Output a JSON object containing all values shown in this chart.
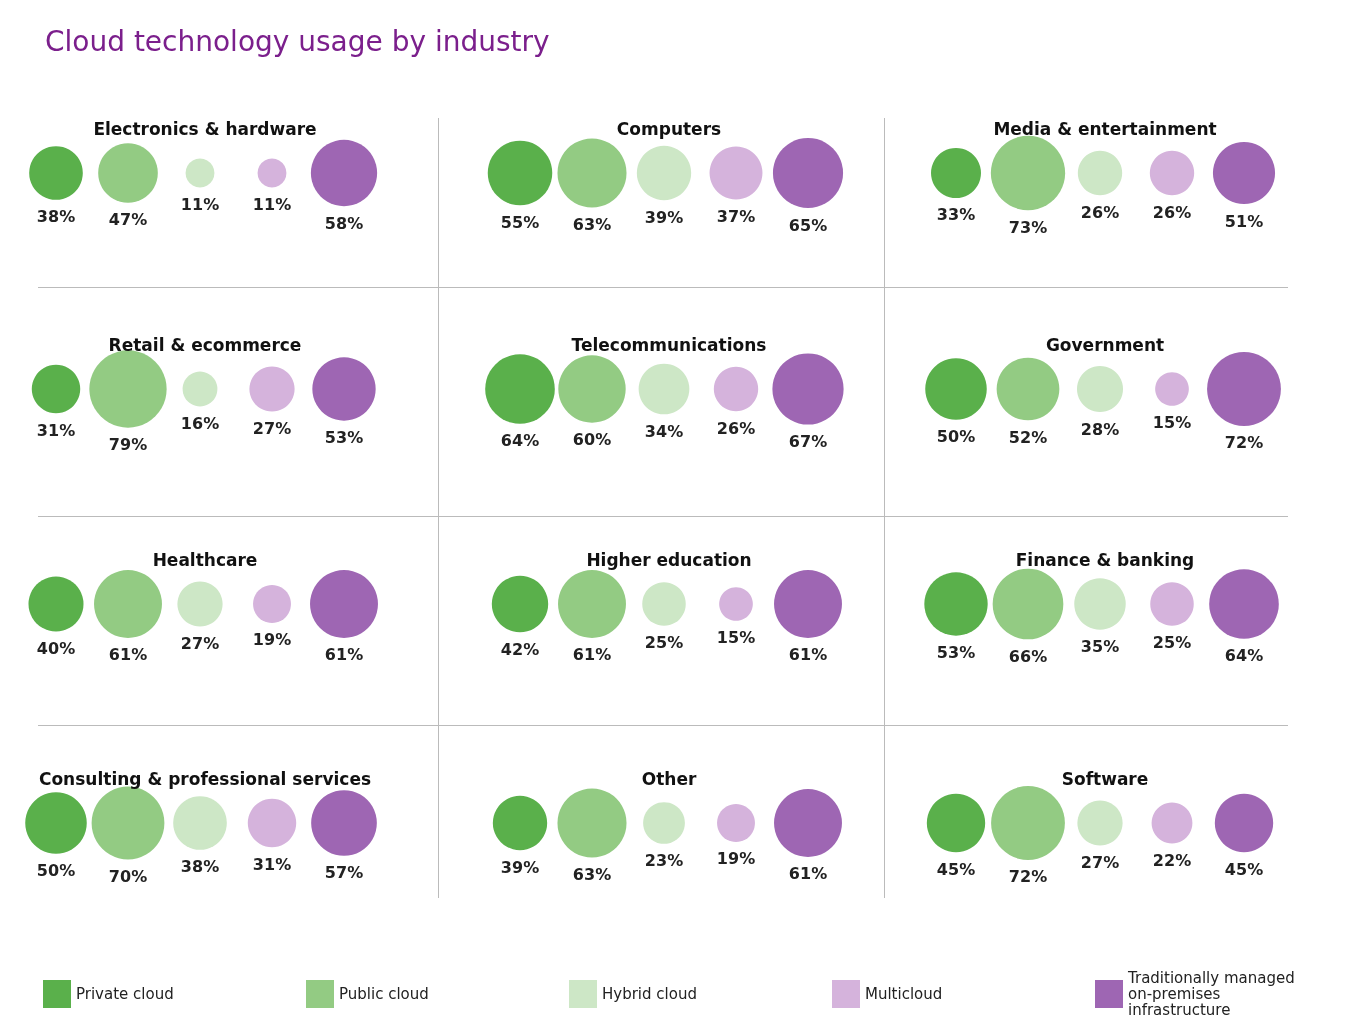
{
  "chart_data": {
    "type": "other",
    "title": "Cloud technology usage by industry",
    "legend": "bottom",
    "categories": [
      "Electronics & hardware",
      "Computers",
      "Media & entertainment",
      "Retail & ecommerce",
      "Telecommunications",
      "Government",
      "Healthcare",
      "Higher education",
      "Finance & banking",
      "Consulting & professional services",
      "Other",
      "Software"
    ],
    "series": [
      {
        "name": "Private cloud",
        "color": "#5ab04b",
        "values": [
          38,
          55,
          33,
          31,
          64,
          50,
          40,
          42,
          53,
          50,
          39,
          45
        ],
        "value_labels": [
          "38%",
          "55%",
          "33%",
          "31%",
          "64%",
          "50%",
          "40%",
          "42%",
          "53%",
          "50%",
          "39%",
          "45%"
        ]
      },
      {
        "name": "Public cloud",
        "color": "#93cb83",
        "values": [
          47,
          63,
          73,
          79,
          60,
          52,
          61,
          61,
          66,
          70,
          63,
          72
        ],
        "value_labels": [
          "47%",
          "63%",
          "73%",
          "79%",
          "60%",
          "52%",
          "61%",
          "61%",
          "66%",
          "70%",
          "63%",
          "72%"
        ]
      },
      {
        "name": "Hybrid cloud",
        "color": "#cde7c6",
        "values": [
          11,
          39,
          26,
          16,
          34,
          28,
          27,
          25,
          35,
          38,
          23,
          27
        ],
        "value_labels": [
          "11%",
          "39%",
          "26%",
          "16%",
          "34%",
          "28%",
          "27%",
          "25%",
          "35%",
          "38%",
          "23%",
          "27%"
        ]
      },
      {
        "name": "Multicloud",
        "color": "#d5b3dc",
        "values": [
          11,
          37,
          26,
          27,
          26,
          15,
          19,
          15,
          25,
          31,
          19,
          22
        ],
        "value_labels": [
          "11%",
          "37%",
          "26%",
          "27%",
          "26%",
          "15%",
          "19%",
          "15%",
          "25%",
          "31%",
          "19%",
          "22%"
        ]
      },
      {
        "name": "Traditionally managed on-premises infrastructure",
        "color": "#9e66b3",
        "values": [
          58,
          65,
          51,
          53,
          67,
          72,
          61,
          61,
          64,
          57,
          61,
          45
        ],
        "value_labels": [
          "58%",
          "65%",
          "51%",
          "53%",
          "67%",
          "72%",
          "61%",
          "61%",
          "64%",
          "57%",
          "61%",
          "45%"
        ]
      }
    ]
  }
}
